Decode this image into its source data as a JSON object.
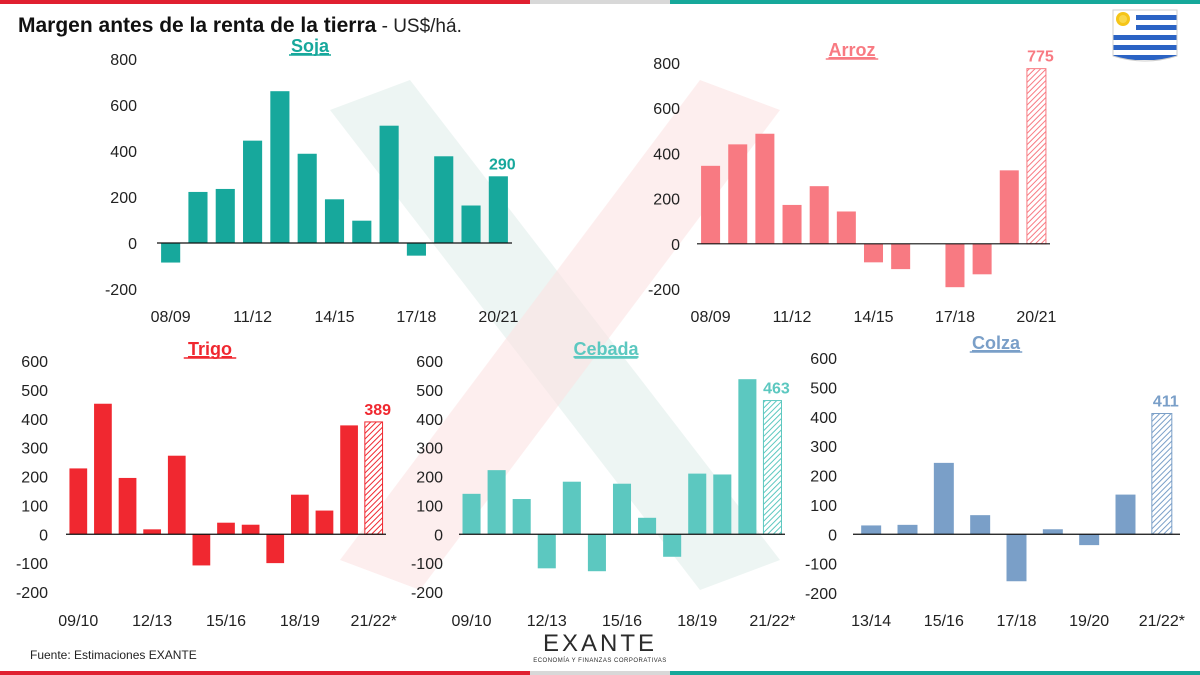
{
  "page": {
    "title": "Margen antes de la renta de la tierra",
    "unit": " - US$/há.",
    "source": "Fuente:  Estimaciones EXANTE",
    "logo_word": "EXANTE",
    "logo_sub": "ECONOMÍA Y FINANZAS CORPORATIVAS"
  },
  "chart_data": [
    {
      "id": "soja",
      "type": "bar",
      "title": "Soja",
      "color": "#17a89c",
      "ylim": [
        -200,
        800
      ],
      "yticks": [
        "800",
        "600",
        "400",
        "200",
        "0",
        "-200"
      ],
      "yticks_values": [
        800,
        600,
        400,
        200,
        0,
        -200
      ],
      "categories": [
        "08/09",
        "09/10",
        "10/11",
        "11/12",
        "12/13",
        "13/14",
        "14/15",
        "15/16",
        "16/17",
        "17/18",
        "18/19",
        "19/20",
        "20/21"
      ],
      "xtick_labels": [
        "08/09",
        "11/12",
        "14/15",
        "17/18",
        "20/21"
      ],
      "values": [
        -85,
        222,
        235,
        445,
        660,
        388,
        190,
        97,
        510,
        -55,
        377,
        163,
        290
      ],
      "hatched": [],
      "data_labels": [
        {
          "index": 12,
          "text": "290"
        }
      ]
    },
    {
      "id": "arroz",
      "type": "bar",
      "title": "Arroz",
      "color": "#f87a82",
      "ylim": [
        -200,
        800
      ],
      "yticks": [
        "800",
        "600",
        "400",
        "200",
        "0",
        "-200"
      ],
      "yticks_values": [
        800,
        600,
        400,
        200,
        0,
        -200
      ],
      "categories": [
        "08/09",
        "09/10",
        "10/11",
        "11/12",
        "12/13",
        "13/14",
        "14/15",
        "15/16",
        "16/17",
        "17/18",
        "18/19",
        "19/20",
        "20/21"
      ],
      "xtick_labels": [
        "08/09",
        "11/12",
        "14/15",
        "17/18",
        "20/21"
      ],
      "values": [
        345,
        440,
        487,
        172,
        255,
        143,
        -82,
        -112,
        0,
        -192,
        -135,
        325,
        775
      ],
      "hatched": [
        12
      ],
      "data_labels": [
        {
          "index": 12,
          "text": "775"
        }
      ]
    },
    {
      "id": "trigo",
      "type": "bar",
      "title": "Trigo",
      "color": "#f02830",
      "ylim": [
        -200,
        600
      ],
      "yticks": [
        "600",
        "500",
        "400",
        "300",
        "200",
        "100",
        "0",
        "-100",
        "-200"
      ],
      "yticks_values": [
        600,
        500,
        400,
        300,
        200,
        100,
        0,
        -100,
        -200
      ],
      "categories": [
        "09/10",
        "10/11",
        "11/12",
        "12/13",
        "13/14",
        "14/15",
        "15/16",
        "16/17",
        "17/18",
        "18/19",
        "19/20",
        "20/21",
        "21/22*"
      ],
      "xtick_labels": [
        "09/10",
        "12/13",
        "15/16",
        "18/19",
        "21/22*"
      ],
      "values": [
        228,
        452,
        195,
        17,
        272,
        -108,
        40,
        33,
        -100,
        137,
        82,
        377,
        389
      ],
      "hatched": [
        12
      ],
      "data_labels": [
        {
          "index": 12,
          "text": "389"
        }
      ]
    },
    {
      "id": "cebada",
      "type": "bar",
      "title": "Cebada",
      "color": "#5cc8c0",
      "ylim": [
        -200,
        600
      ],
      "yticks": [
        "600",
        "500",
        "400",
        "300",
        "200",
        "100",
        "0",
        "-100",
        "-200"
      ],
      "yticks_values": [
        600,
        500,
        400,
        300,
        200,
        100,
        0,
        -100,
        -200
      ],
      "categories": [
        "09/10",
        "10/11",
        "11/12",
        "12/13",
        "13/14",
        "14/15",
        "15/16",
        "16/17",
        "17/18",
        "18/19",
        "19/20",
        "20/21",
        "21/22*"
      ],
      "xtick_labels": [
        "09/10",
        "12/13",
        "15/16",
        "18/19",
        "21/22*"
      ],
      "values": [
        140,
        222,
        122,
        -118,
        182,
        -128,
        175,
        57,
        -78,
        210,
        207,
        537,
        463
      ],
      "hatched": [
        12
      ],
      "data_labels": [
        {
          "index": 12,
          "text": "463"
        }
      ]
    },
    {
      "id": "colza",
      "type": "bar",
      "title": "Colza",
      "color": "#7a9fc8",
      "ylim": [
        -200,
        600
      ],
      "yticks": [
        "600",
        "500",
        "400",
        "300",
        "200",
        "100",
        "0",
        "-100",
        "-200"
      ],
      "yticks_values": [
        600,
        500,
        400,
        300,
        200,
        100,
        0,
        -100,
        -200
      ],
      "categories": [
        "13/14",
        "14/15",
        "15/16",
        "16/17",
        "17/18",
        "18/19",
        "19/20",
        "20/21",
        "21/22*"
      ],
      "xtick_labels": [
        "13/14",
        "15/16",
        "17/18",
        "19/20",
        "21/22*"
      ],
      "values": [
        30,
        32,
        243,
        65,
        -160,
        17,
        -37,
        135,
        411
      ],
      "hatched": [
        8
      ],
      "data_labels": [
        {
          "index": 8,
          "text": "411"
        }
      ]
    }
  ]
}
